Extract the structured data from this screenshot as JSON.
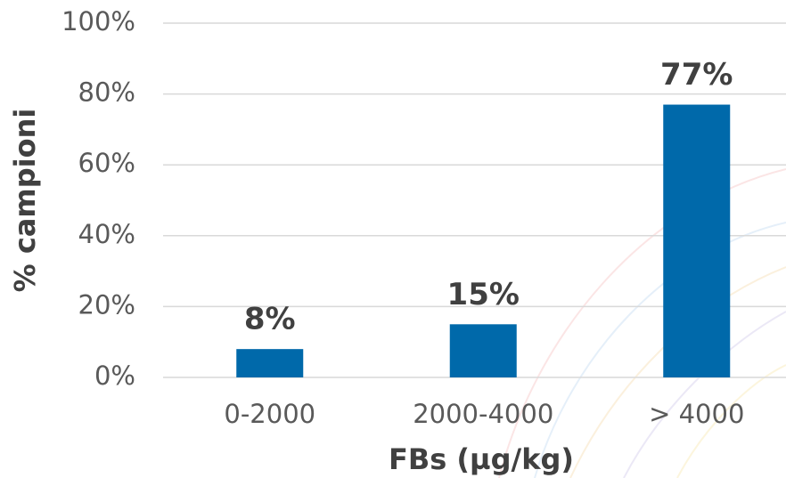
{
  "chart_data": {
    "type": "bar",
    "categories": [
      "0-2000",
      "2000-4000",
      "> 4000"
    ],
    "values": [
      8,
      15,
      77
    ],
    "value_labels": [
      "8%",
      "15%",
      "77%"
    ],
    "color": "#0069aa",
    "xlabel": "FBs (µg/kg)",
    "ylabel": "% campioni",
    "ylim": [
      0,
      100
    ],
    "yticks": [
      {
        "value": 0,
        "label": "0%"
      },
      {
        "value": 20,
        "label": "20%"
      },
      {
        "value": 40,
        "label": "40%"
      },
      {
        "value": 60,
        "label": "60%"
      },
      {
        "value": 80,
        "label": "80%"
      },
      {
        "value": 100,
        "label": "100%"
      }
    ],
    "grid": true
  }
}
